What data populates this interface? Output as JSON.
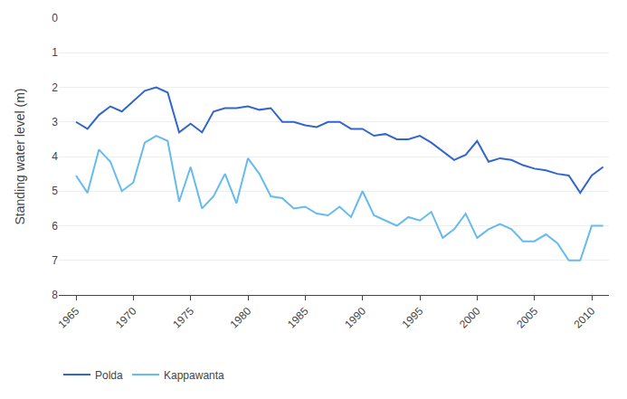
{
  "chart_data": {
    "type": "line",
    "x": [
      1965,
      1966,
      1967,
      1968,
      1969,
      1970,
      1971,
      1972,
      1973,
      1974,
      1975,
      1976,
      1977,
      1978,
      1979,
      1980,
      1981,
      1982,
      1983,
      1984,
      1985,
      1986,
      1987,
      1988,
      1989,
      1990,
      1991,
      1992,
      1993,
      1994,
      1995,
      1996,
      1997,
      1998,
      1999,
      2000,
      2001,
      2002,
      2003,
      2004,
      2005,
      2006,
      2007,
      2008,
      2009,
      2010,
      2011
    ],
    "series": [
      {
        "name": "Polda",
        "color": "#3366cc",
        "values": [
          3.0,
          3.2,
          2.8,
          2.55,
          2.7,
          2.4,
          2.1,
          2.0,
          2.15,
          3.3,
          3.05,
          3.3,
          2.7,
          2.6,
          2.6,
          2.55,
          2.65,
          2.6,
          3.0,
          3.0,
          3.1,
          3.15,
          3.0,
          3.0,
          3.2,
          3.2,
          3.4,
          3.35,
          3.5,
          3.5,
          3.4,
          3.6,
          3.85,
          4.1,
          3.95,
          3.55,
          4.15,
          4.05,
          4.1,
          4.25,
          4.35,
          4.4,
          4.5,
          4.55,
          5.05,
          4.55,
          4.3
        ]
      },
      {
        "name": "Kappawanta",
        "color": "#66bbee",
        "values": [
          4.55,
          5.05,
          3.8,
          4.15,
          5.0,
          4.75,
          3.6,
          3.4,
          3.55,
          5.3,
          4.3,
          5.5,
          5.15,
          4.5,
          5.35,
          4.05,
          4.5,
          5.15,
          5.2,
          5.5,
          5.45,
          5.65,
          5.7,
          5.45,
          5.75,
          5.0,
          5.7,
          5.85,
          6.0,
          5.75,
          5.85,
          5.6,
          6.35,
          6.1,
          5.65,
          6.35,
          6.1,
          5.95,
          6.1,
          6.45,
          6.45,
          6.25,
          6.5,
          7.0,
          7.0,
          6.0,
          6.0
        ]
      }
    ],
    "y_label": "Standing water level (m)",
    "xlim": [
      1963.5,
      2011.5
    ],
    "xticks": [
      1965,
      1970,
      1975,
      1980,
      1985,
      1990,
      1995,
      2000,
      2005,
      2010
    ],
    "ylim": [
      8,
      0
    ],
    "yticks": [
      0,
      1,
      2,
      3,
      4,
      5,
      6,
      7,
      8
    ],
    "grid": "y",
    "legend": "bottom"
  }
}
